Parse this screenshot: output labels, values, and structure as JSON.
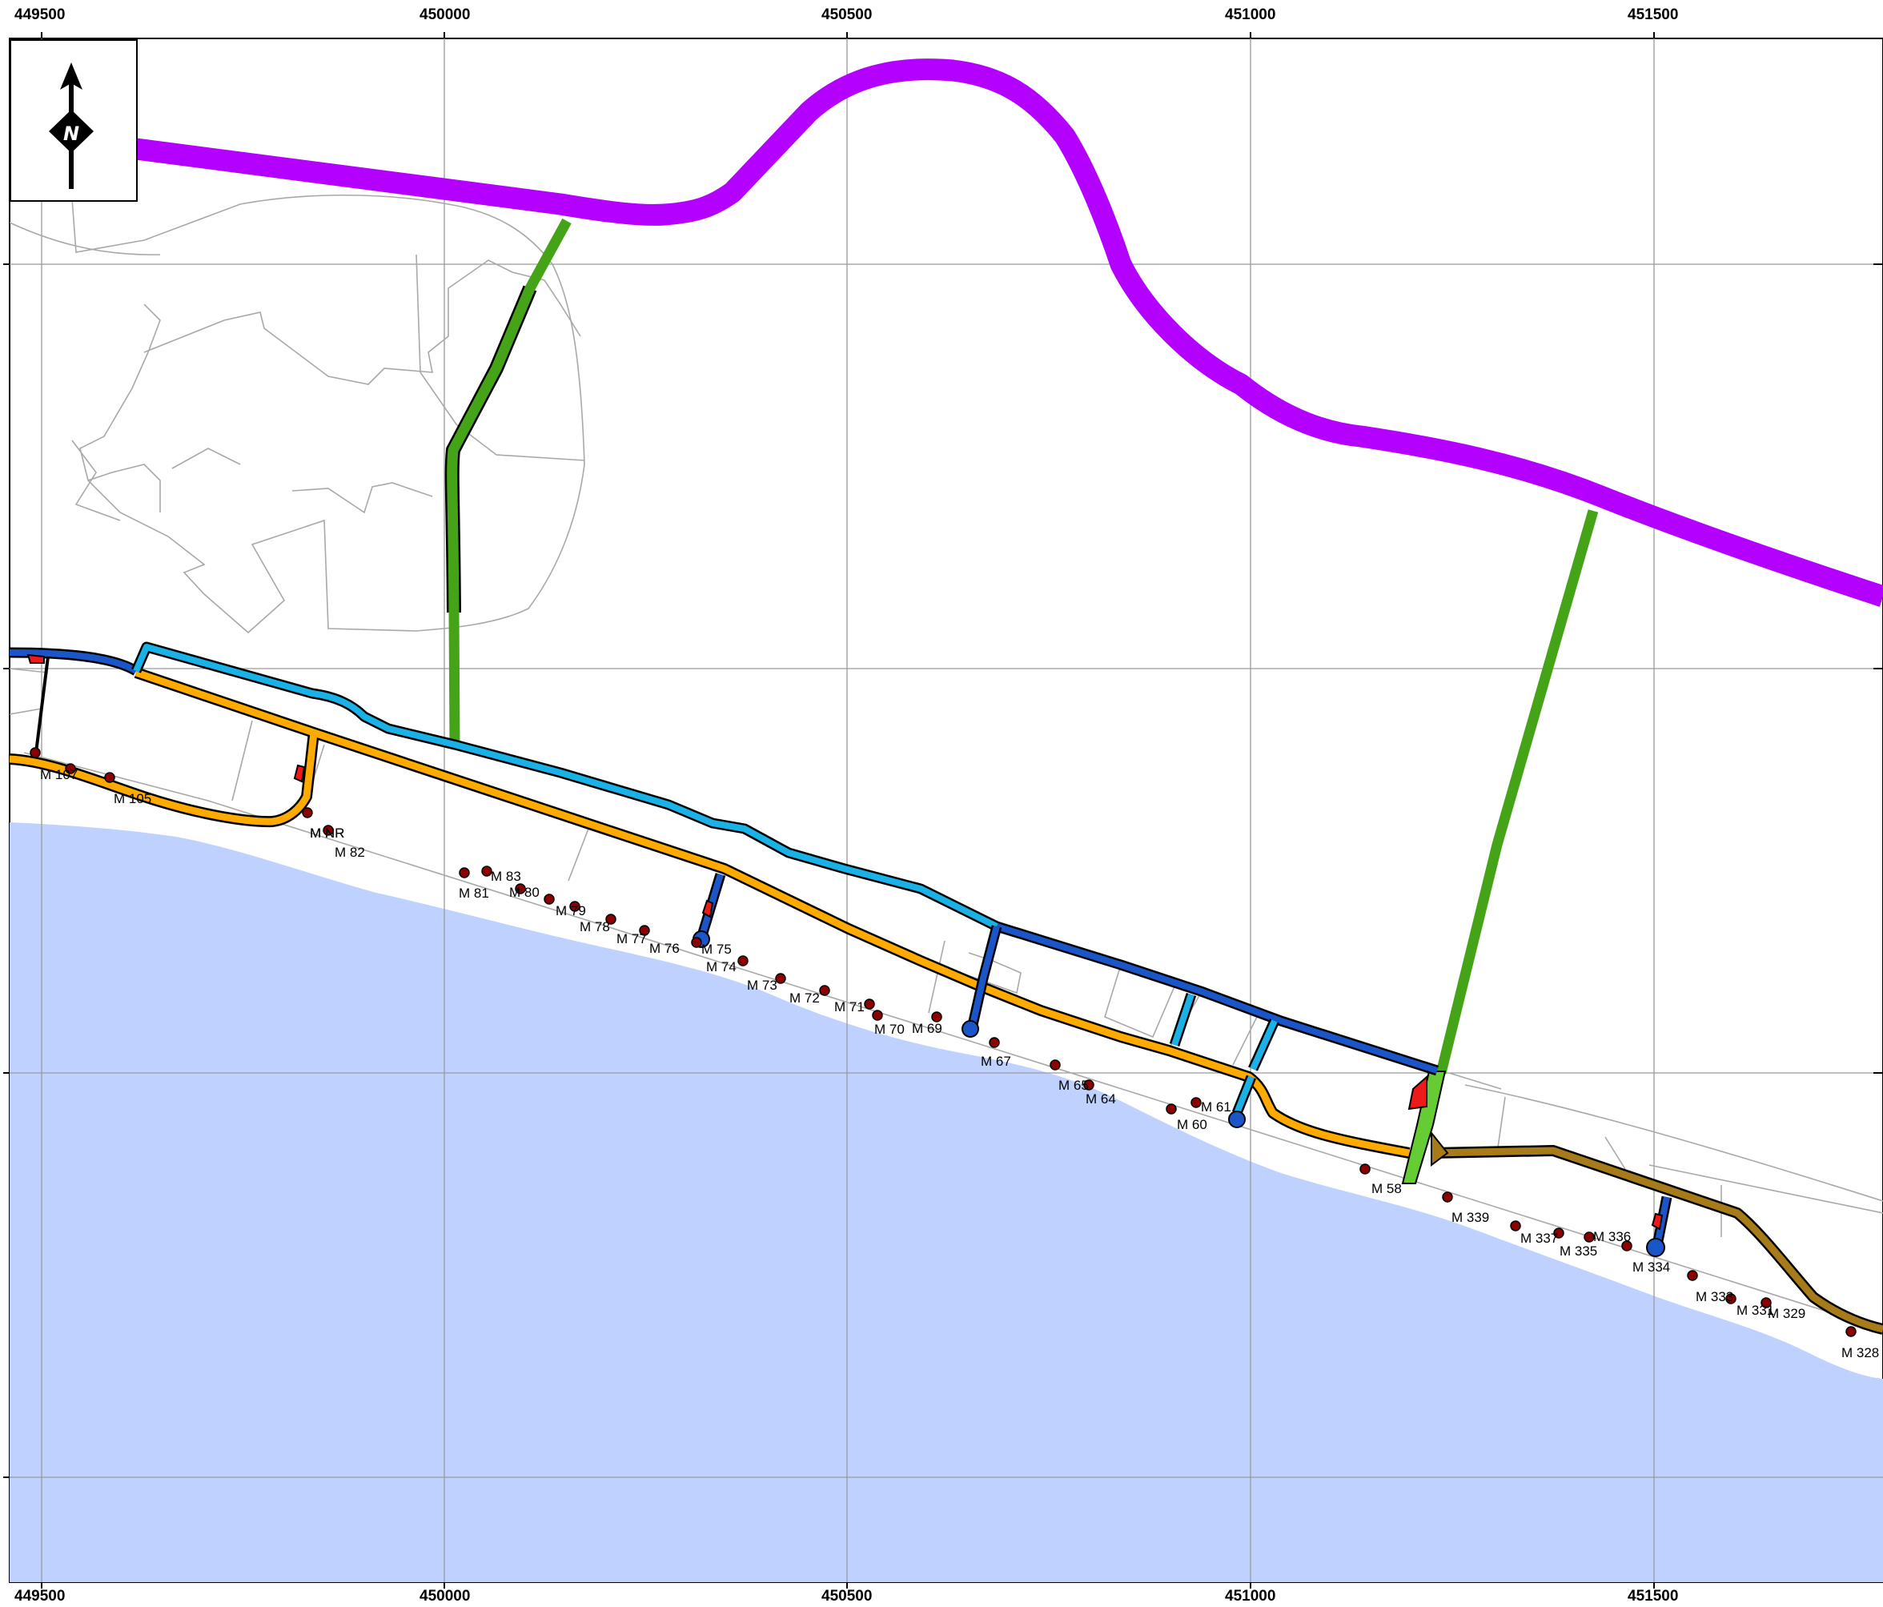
{
  "map": {
    "north_arrow_letter": "N",
    "x_axis_labels": [
      "449500",
      "450000",
      "450500",
      "451000",
      "451500"
    ],
    "colors": {
      "sea": "#bfd2ff",
      "grid": "#9a9a9a",
      "parcel_outline": "#a8a8a8",
      "main_road": "#b400ff",
      "access_road": "#44a316",
      "access_road_light": "#66cc33",
      "coastal_road_orange": "#ffaa00",
      "coastal_road_brown": "#a77a1a",
      "inland_road_blue": "#1b56c9",
      "inland_road_cyan": "#1ab2e6",
      "monitoring_point": "#8b0000",
      "marker_red": "#ee1a1a"
    },
    "monitoring_points": [
      {
        "label": "M 107"
      },
      {
        "label": "M 105"
      },
      {
        "label": "M NR"
      },
      {
        "label": "M NR"
      },
      {
        "label": "M 82"
      },
      {
        "label": "M 83"
      },
      {
        "label": "M 81"
      },
      {
        "label": "M 80"
      },
      {
        "label": "M 79"
      },
      {
        "label": "M 78"
      },
      {
        "label": "M 77"
      },
      {
        "label": "M 76"
      },
      {
        "label": "M 75"
      },
      {
        "label": "M 74"
      },
      {
        "label": "M 73"
      },
      {
        "label": "M 72"
      },
      {
        "label": "M 71"
      },
      {
        "label": "M 70"
      },
      {
        "label": "M 69"
      },
      {
        "label": "M 67"
      },
      {
        "label": "M 65"
      },
      {
        "label": "M 64"
      },
      {
        "label": "M 60"
      },
      {
        "label": "M 61"
      },
      {
        "label": "M 58"
      },
      {
        "label": "M 339"
      },
      {
        "label": "M 337"
      },
      {
        "label": "M 335"
      },
      {
        "label": "M 336"
      },
      {
        "label": "M 334"
      },
      {
        "label": "M 333"
      },
      {
        "label": "M 331"
      },
      {
        "label": "M 329"
      },
      {
        "label": "M 328"
      }
    ]
  }
}
